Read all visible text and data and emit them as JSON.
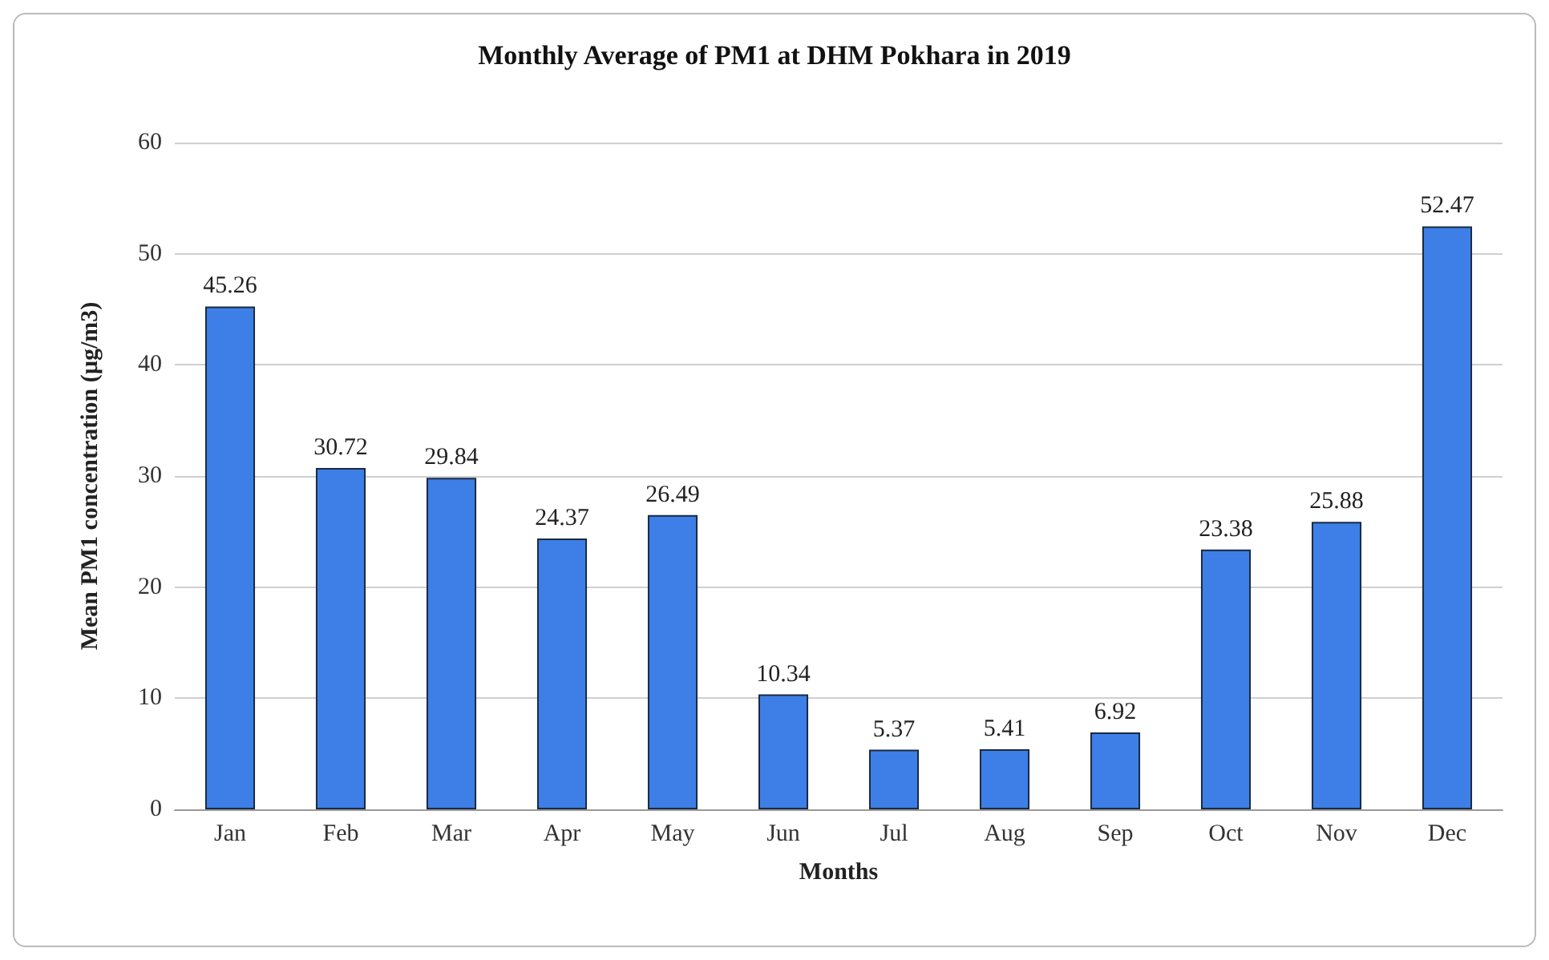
{
  "chart_data": {
    "type": "bar",
    "title": "Monthly Average of PM1 at DHM Pokhara in 2019",
    "xlabel": "Months",
    "ylabel": "Mean PM1 concentration (µg/m3)",
    "categories": [
      "Jan",
      "Feb",
      "Mar",
      "Apr",
      "May",
      "Jun",
      "Jul",
      "Aug",
      "Sep",
      "Oct",
      "Nov",
      "Dec"
    ],
    "values": [
      45.26,
      30.72,
      29.84,
      24.37,
      26.49,
      10.34,
      5.37,
      5.41,
      6.92,
      23.38,
      25.88,
      52.47
    ],
    "color": "#3d7fe6",
    "ylim": [
      0,
      60
    ],
    "yticks": [
      0,
      10,
      20,
      30,
      40,
      50,
      60
    ],
    "grid": "y",
    "data_labels": true
  }
}
